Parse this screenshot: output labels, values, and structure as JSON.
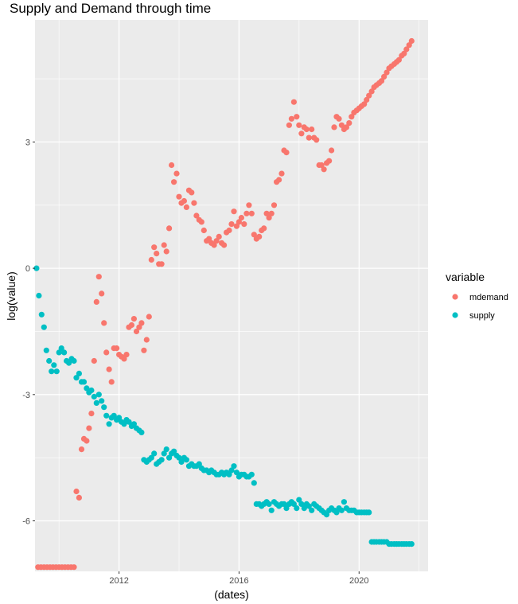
{
  "chart_data": {
    "type": "scatter",
    "title": "Supply and Demand through time",
    "xlabel": "(dates)",
    "ylabel": "log(value)",
    "x_ticks": [
      "2012",
      "2016",
      "2020"
    ],
    "y_ticks": [
      "3",
      "0",
      "-3",
      "-6"
    ],
    "xlim": [
      2009.2,
      2022.3
    ],
    "ylim": [
      -7.2,
      5.9
    ],
    "grid": true,
    "legend": {
      "title": "variable",
      "position": "right"
    },
    "series": [
      {
        "name": "mdemand",
        "color": "#F8766D",
        "x": [
          2009.3,
          2009.4,
          2009.5,
          2009.6,
          2009.7,
          2009.8,
          2009.9,
          2010.0,
          2010.1,
          2010.2,
          2010.3,
          2010.4,
          2010.5,
          2010.58,
          2010.67,
          2010.75,
          2010.83,
          2010.92,
          2011.0,
          2011.08,
          2011.17,
          2011.25,
          2011.33,
          2011.42,
          2011.5,
          2011.58,
          2011.67,
          2011.75,
          2011.83,
          2011.92,
          2012.0,
          2012.08,
          2012.17,
          2012.25,
          2012.33,
          2012.42,
          2012.5,
          2012.58,
          2012.67,
          2012.75,
          2012.83,
          2012.92,
          2013.0,
          2013.08,
          2013.17,
          2013.25,
          2013.33,
          2013.42,
          2013.5,
          2013.58,
          2013.67,
          2013.75,
          2013.83,
          2013.92,
          2014.0,
          2014.08,
          2014.17,
          2014.25,
          2014.33,
          2014.42,
          2014.5,
          2014.58,
          2014.67,
          2014.75,
          2014.83,
          2014.92,
          2015.0,
          2015.08,
          2015.17,
          2015.25,
          2015.33,
          2015.42,
          2015.5,
          2015.58,
          2015.67,
          2015.75,
          2015.83,
          2015.92,
          2016.0,
          2016.08,
          2016.17,
          2016.25,
          2016.33,
          2016.42,
          2016.5,
          2016.58,
          2016.67,
          2016.75,
          2016.83,
          2016.92,
          2017.0,
          2017.08,
          2017.17,
          2017.25,
          2017.33,
          2017.42,
          2017.5,
          2017.58,
          2017.67,
          2017.75,
          2017.83,
          2017.92,
          2018.0,
          2018.08,
          2018.17,
          2018.25,
          2018.33,
          2018.42,
          2018.5,
          2018.58,
          2018.67,
          2018.75,
          2018.83,
          2018.92,
          2019.0,
          2019.08,
          2019.17,
          2019.25,
          2019.33,
          2019.42,
          2019.5,
          2019.58,
          2019.67,
          2019.75,
          2019.83,
          2019.92,
          2020.0,
          2020.08,
          2020.17,
          2020.25,
          2020.33,
          2020.42,
          2020.5,
          2020.58,
          2020.67,
          2020.75,
          2020.83,
          2020.92,
          2021.0,
          2021.08,
          2021.17,
          2021.25,
          2021.33,
          2021.42,
          2021.5,
          2021.58,
          2021.67,
          2021.75
        ],
        "y": [
          -7.1,
          -7.1,
          -7.1,
          -7.1,
          -7.1,
          -7.1,
          -7.1,
          -7.1,
          -7.1,
          -7.1,
          -7.1,
          -7.1,
          -7.1,
          -5.3,
          -5.45,
          -4.3,
          -4.05,
          -4.1,
          -3.8,
          -3.45,
          -2.2,
          -0.8,
          -0.2,
          -0.6,
          -1.3,
          -2.0,
          -2.4,
          -2.7,
          -1.9,
          -1.9,
          -2.05,
          -2.1,
          -2.15,
          -2.05,
          -1.4,
          -1.35,
          -1.2,
          -1.5,
          -1.4,
          -1.3,
          -1.95,
          -1.7,
          -1.15,
          0.2,
          0.5,
          0.35,
          0.1,
          0.1,
          0.55,
          0.4,
          0.95,
          2.45,
          2.05,
          2.25,
          1.7,
          1.55,
          1.6,
          1.45,
          1.85,
          1.8,
          1.55,
          1.25,
          1.15,
          1.1,
          0.9,
          0.65,
          0.7,
          0.6,
          0.55,
          0.65,
          0.75,
          0.6,
          0.55,
          0.85,
          0.9,
          1.05,
          1.35,
          1.0,
          1.1,
          1.2,
          1.05,
          1.3,
          1.5,
          1.3,
          0.8,
          0.7,
          0.75,
          0.9,
          0.95,
          1.3,
          1.2,
          1.3,
          1.5,
          2.05,
          2.1,
          2.25,
          2.8,
          2.75,
          3.4,
          3.55,
          3.95,
          3.6,
          3.4,
          3.2,
          3.35,
          3.3,
          3.1,
          3.3,
          3.1,
          3.05,
          2.45,
          2.45,
          2.35,
          2.5,
          2.55,
          2.8,
          3.35,
          3.6,
          3.55,
          3.4,
          3.3,
          3.35,
          3.45,
          3.6,
          3.7,
          3.75,
          3.8,
          3.85,
          3.9,
          4.0,
          4.1,
          4.2,
          4.3,
          4.35,
          4.4,
          4.45,
          4.55,
          4.65,
          4.75,
          4.8,
          4.85,
          4.9,
          4.95,
          5.05,
          5.1,
          5.2,
          5.3,
          5.4
        ]
      },
      {
        "name": "supply",
        "color": "#00BFC4",
        "x": [
          2009.25,
          2009.33,
          2009.42,
          2009.5,
          2009.58,
          2009.67,
          2009.75,
          2009.83,
          2009.92,
          2010.0,
          2010.08,
          2010.17,
          2010.25,
          2010.33,
          2010.42,
          2010.5,
          2010.58,
          2010.67,
          2010.75,
          2010.83,
          2010.92,
          2011.0,
          2011.08,
          2011.17,
          2011.25,
          2011.33,
          2011.42,
          2011.5,
          2011.58,
          2011.67,
          2011.75,
          2011.83,
          2011.92,
          2012.0,
          2012.08,
          2012.17,
          2012.25,
          2012.33,
          2012.42,
          2012.5,
          2012.58,
          2012.67,
          2012.75,
          2012.83,
          2012.92,
          2013.0,
          2013.08,
          2013.17,
          2013.25,
          2013.33,
          2013.42,
          2013.5,
          2013.58,
          2013.67,
          2013.75,
          2013.83,
          2013.92,
          2014.0,
          2014.08,
          2014.17,
          2014.25,
          2014.33,
          2014.42,
          2014.5,
          2014.58,
          2014.67,
          2014.75,
          2014.83,
          2014.92,
          2015.0,
          2015.08,
          2015.17,
          2015.25,
          2015.33,
          2015.42,
          2015.5,
          2015.58,
          2015.67,
          2015.75,
          2015.83,
          2015.92,
          2016.0,
          2016.08,
          2016.17,
          2016.25,
          2016.33,
          2016.42,
          2016.5,
          2016.58,
          2016.67,
          2016.75,
          2016.83,
          2016.92,
          2017.0,
          2017.08,
          2017.17,
          2017.25,
          2017.33,
          2017.42,
          2017.5,
          2017.58,
          2017.67,
          2017.75,
          2017.83,
          2017.92,
          2018.0,
          2018.08,
          2018.17,
          2018.25,
          2018.33,
          2018.42,
          2018.5,
          2018.58,
          2018.67,
          2018.75,
          2018.83,
          2018.92,
          2019.0,
          2019.08,
          2019.17,
          2019.25,
          2019.33,
          2019.42,
          2019.5,
          2019.58,
          2019.67,
          2019.75,
          2019.83,
          2019.92,
          2020.0,
          2020.08,
          2020.17,
          2020.25,
          2020.33,
          2020.42,
          2020.5,
          2020.58,
          2020.67,
          2020.75,
          2020.83,
          2020.92,
          2021.0,
          2021.08,
          2021.17,
          2021.25,
          2021.33,
          2021.42,
          2021.5,
          2021.58,
          2021.67,
          2021.75
        ],
        "y": [
          0.0,
          -0.65,
          -1.1,
          -1.4,
          -1.95,
          -2.2,
          -2.45,
          -2.3,
          -2.45,
          -2.0,
          -1.9,
          -2.0,
          -2.2,
          -2.25,
          -2.15,
          -2.2,
          -2.6,
          -2.5,
          -2.7,
          -2.7,
          -2.85,
          -2.95,
          -2.9,
          -3.05,
          -3.2,
          -3.0,
          -3.15,
          -3.3,
          -3.5,
          -3.7,
          -3.55,
          -3.5,
          -3.6,
          -3.55,
          -3.65,
          -3.7,
          -3.6,
          -3.65,
          -3.75,
          -3.7,
          -3.8,
          -3.85,
          -3.9,
          -4.55,
          -4.6,
          -4.55,
          -4.5,
          -4.4,
          -4.65,
          -4.6,
          -4.55,
          -4.4,
          -4.3,
          -4.5,
          -4.4,
          -4.35,
          -4.45,
          -4.5,
          -4.6,
          -4.5,
          -4.55,
          -4.7,
          -4.65,
          -4.7,
          -4.7,
          -4.65,
          -4.75,
          -4.8,
          -4.8,
          -4.85,
          -4.8,
          -4.85,
          -4.9,
          -4.9,
          -4.85,
          -4.9,
          -4.85,
          -4.9,
          -4.8,
          -4.7,
          -4.85,
          -4.95,
          -4.9,
          -4.9,
          -4.95,
          -4.95,
          -4.9,
          -5.1,
          -5.6,
          -5.6,
          -5.65,
          -5.6,
          -5.55,
          -5.6,
          -5.75,
          -5.55,
          -5.6,
          -5.65,
          -5.6,
          -5.6,
          -5.7,
          -5.6,
          -5.55,
          -5.6,
          -5.7,
          -5.5,
          -5.6,
          -5.7,
          -5.6,
          -5.65,
          -5.75,
          -5.6,
          -5.65,
          -5.7,
          -5.75,
          -5.8,
          -5.85,
          -5.75,
          -5.7,
          -5.75,
          -5.8,
          -5.7,
          -5.75,
          -5.55,
          -5.7,
          -5.75,
          -5.75,
          -5.75,
          -5.8,
          -5.8,
          -5.8,
          -5.8,
          -5.8,
          -5.8,
          -6.5,
          -6.5,
          -6.5,
          -6.5,
          -6.5,
          -6.5,
          -6.5,
          -6.55,
          -6.55,
          -6.55,
          -6.55,
          -6.55,
          -6.55,
          -6.55,
          -6.55,
          -6.55,
          -6.55
        ]
      }
    ]
  }
}
